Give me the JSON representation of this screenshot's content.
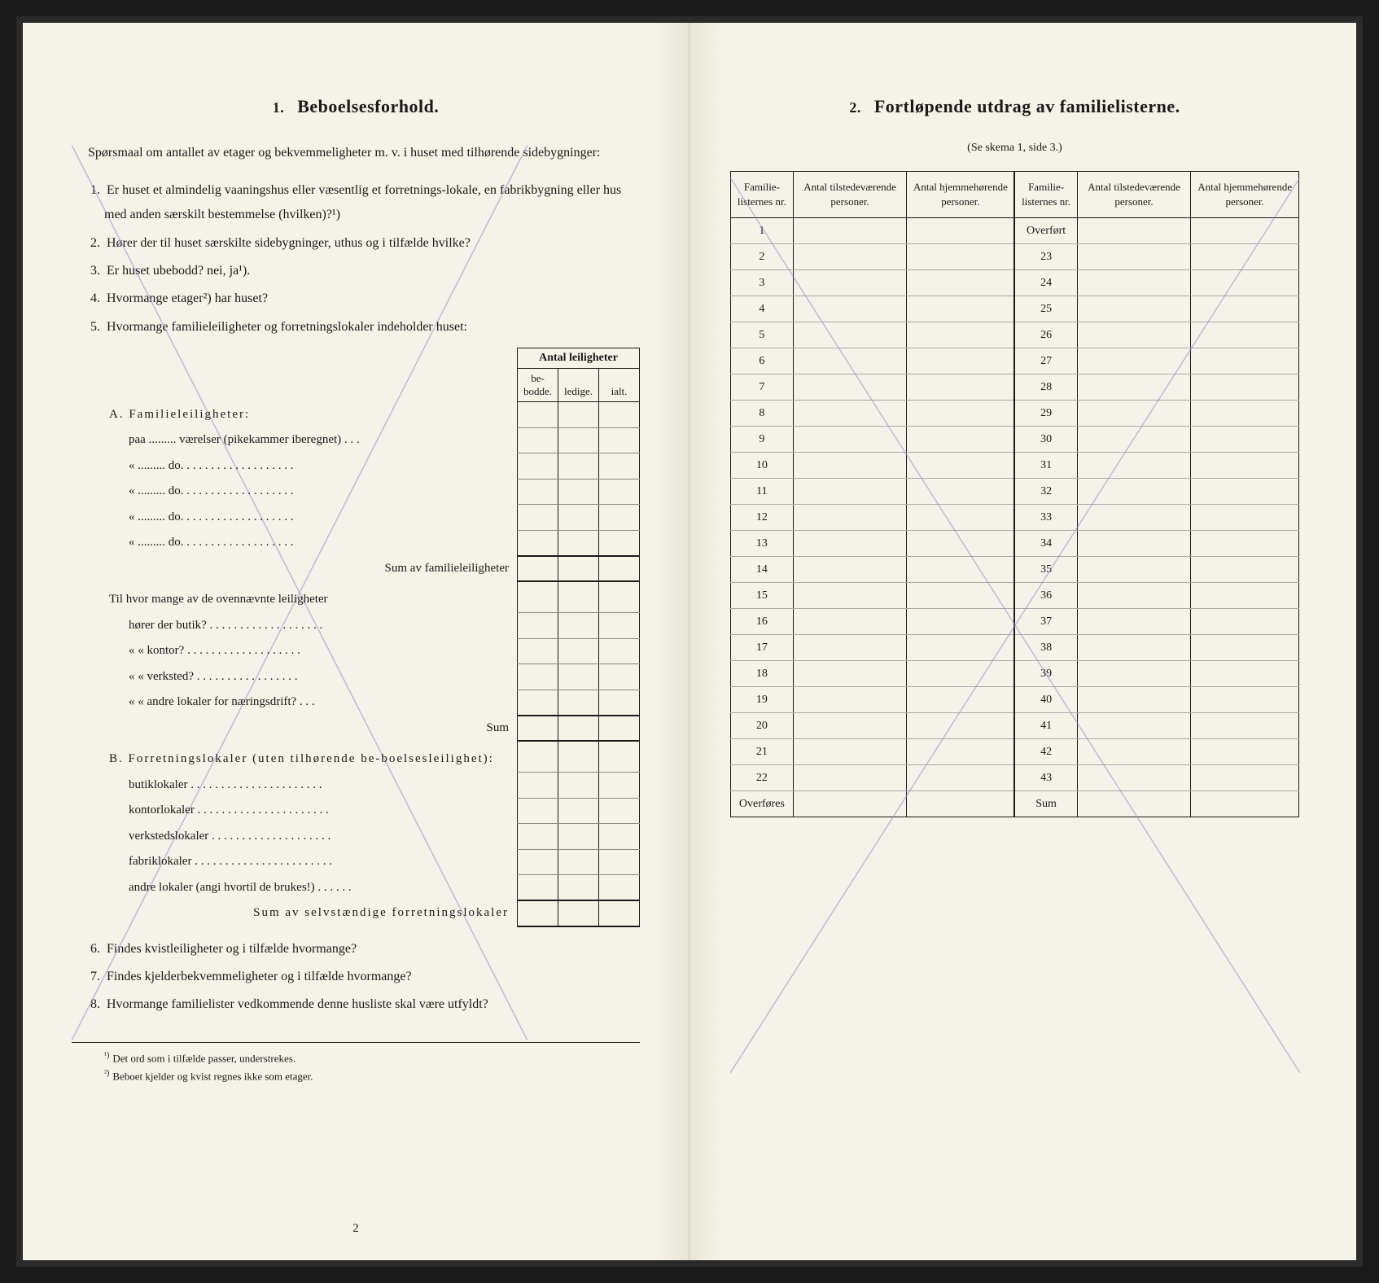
{
  "left": {
    "section_num": "1.",
    "title": "Beboelsesforhold.",
    "intro": "Spørsmaal om antallet av etager og bekvemmeligheter m. v. i huset med tilhørende sidebygninger:",
    "questions": [
      {
        "num": "1.",
        "text": "Er huset et almindelig vaaningshus eller væsentlig et forretnings-lokale, en fabrikbygning eller hus med anden særskilt bestemmelse (hvilken)?¹)"
      },
      {
        "num": "2.",
        "text": "Hører der til huset særskilte sidebygninger, uthus og i tilfælde hvilke?"
      },
      {
        "num": "3.",
        "text": "Er huset ubebodd?  nei,  ja¹)."
      },
      {
        "num": "4.",
        "text": "Hvormange etager²) har huset?"
      },
      {
        "num": "5.",
        "text": "Hvormange familieleiligheter og forretningslokaler indeholder huset:"
      }
    ],
    "sub_table": {
      "header_span": "Antal leiligheter",
      "headers": [
        "be-bodde.",
        "ledige.",
        "ialt."
      ],
      "section_a_title": "A. Familieleiligheter:",
      "rows_a": [
        "paa ......... værelser (pikekammer iberegnet) . . .",
        "«   .........      do.     . . . . . . . . . . . . . . . . . .",
        "«   .........      do.     . . . . . . . . . . . . . . . . . .",
        "«   .........      do.     . . . . . . . . . . . . . . . . . .",
        "«   .........      do.     . . . . . . . . . . . . . . . . . ."
      ],
      "sum_a": "Sum av familieleiligheter",
      "mid_text": "Til hvor mange av de ovennævnte leiligheter",
      "rows_mid": [
        "hører der butik? . . . . . . . . . . . . . . . . . . .",
        "«     «  kontor? . . . . . . . . . . . . . . . . . . .",
        "«     «  verksted? . . . . . . . . . . . . . . . . .",
        "«     «  andre lokaler for næringsdrift? . . ."
      ],
      "sum_mid": "Sum",
      "section_b_title": "B. Forretningslokaler (uten tilhørende be-boelsesleilighet):",
      "rows_b": [
        "butiklokaler . . . . . . . . . . . . . . . . . . . . . .",
        "kontorlokaler . . . . . . . . . . . . . . . . . . . . . .",
        "verkstedslokaler . . . . . . . . . . . . . . . . . . . .",
        "fabriklokaler . . . . . . . . . . . . . . . . . . . . . . .",
        "andre lokaler (angi hvortil de brukes!) . . . . . ."
      ],
      "sum_b": "Sum av selvstændige forretningslokaler"
    },
    "questions_after": [
      {
        "num": "6.",
        "text": "Findes kvistleiligheter og i tilfælde hvormange?"
      },
      {
        "num": "7.",
        "text": "Findes kjelderbekvemmeligheter og i tilfælde hvormange?"
      },
      {
        "num": "8.",
        "text": "Hvormange familielister vedkommende denne husliste skal være utfyldt?"
      }
    ],
    "footnotes": [
      {
        "num": "¹)",
        "text": "Det ord som i tilfælde passer, understrekes."
      },
      {
        "num": "²)",
        "text": "Beboet kjelder og kvist regnes ikke som etager."
      }
    ],
    "page_num": "2"
  },
  "right": {
    "section_num": "2.",
    "title": "Fortløpende utdrag av familielisterne.",
    "subtitle": "(Se skema 1, side 3.)",
    "headers": [
      "Familie-listernes nr.",
      "Antal tilstedeværende personer.",
      "Antal hjemmehørende personer.",
      "Familie-listernes nr.",
      "Antal tilstedeværende personer.",
      "Antal hjemmehørende personer."
    ],
    "rows_left_col": [
      "1",
      "2",
      "3",
      "4",
      "5",
      "6",
      "7",
      "8",
      "9",
      "10",
      "11",
      "12",
      "13",
      "14",
      "15",
      "16",
      "17",
      "18",
      "19",
      "20",
      "21",
      "22",
      "Overføres"
    ],
    "rows_right_col": [
      "Overført",
      "23",
      "24",
      "25",
      "26",
      "27",
      "28",
      "29",
      "30",
      "31",
      "32",
      "33",
      "34",
      "35",
      "36",
      "37",
      "38",
      "39",
      "40",
      "41",
      "42",
      "43",
      "Sum"
    ]
  }
}
